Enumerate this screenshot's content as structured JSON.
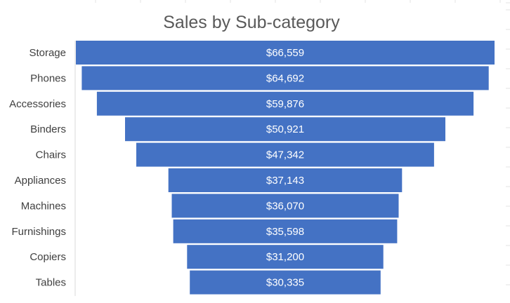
{
  "chart_data": {
    "type": "bar",
    "subtype": "funnel",
    "title": "Sales by Sub-category",
    "categories": [
      "Storage",
      "Phones",
      "Accessories",
      "Binders",
      "Chairs",
      "Appliances",
      "Machines",
      "Furnishings",
      "Copiers",
      "Tables"
    ],
    "values": [
      66559,
      64692,
      59876,
      50921,
      47342,
      37143,
      36070,
      35598,
      31200,
      30335
    ],
    "value_labels": [
      "$66,559",
      "$64,692",
      "$59,876",
      "$50,921",
      "$47,342",
      "$37,143",
      "$36,070",
      "$35,598",
      "$31,200",
      "$30,335"
    ],
    "orientation": "horizontal",
    "bar_alignment": "centered",
    "xlabel": "",
    "ylabel": "",
    "grid": false,
    "legend": "none",
    "colors": {
      "bar": "#4472c4",
      "bar_label": "#ffffff",
      "title": "#595959",
      "axis_label": "#404040",
      "axis_line": "#d9d9d9",
      "sheet_grid": "#e3e3e3"
    }
  }
}
